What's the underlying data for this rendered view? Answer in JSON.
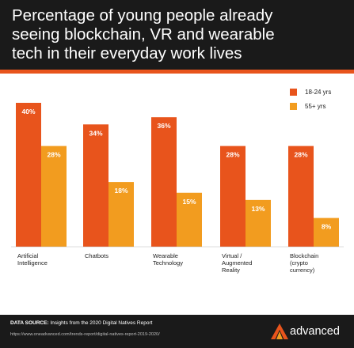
{
  "header": {
    "title": "Percentage of young people already\nseeing blockchain, VR and wearable\ntech in their everyday work lives"
  },
  "colors": {
    "accent": "#e8541c",
    "series_a": "#e8541c",
    "series_b": "#f29c1f",
    "dark": "#1a1a1a"
  },
  "chart_data": {
    "type": "bar",
    "title": "Percentage of young people already seeing blockchain, VR and wearable tech in their everyday work lives",
    "categories": [
      "Artificial\nIntelligence",
      "Chatbots",
      "Wearable\nTechnology",
      "Virtual /\nAugmented\nReality",
      "Blockchain\n(crypto\ncurrency)"
    ],
    "series": [
      {
        "name": "18-24 yrs",
        "color": "#e8541c",
        "values": [
          40,
          34,
          36,
          28,
          28
        ]
      },
      {
        "name": "55+ yrs",
        "color": "#f29c1f",
        "values": [
          28,
          18,
          15,
          13,
          8
        ]
      }
    ],
    "value_suffix": "%",
    "ylim": [
      0,
      40
    ],
    "legend_position": "top-right",
    "grid": false
  },
  "footer": {
    "source_label": "DATA SOURCE:",
    "source_text": " Insights from the 2020 Digital Natives Report",
    "url": "https://www.oneadvanced.com/trends-report/digital-natives-report-2019-2020/",
    "brand": "advanced",
    "logo_icon": "advanced-logo-icon"
  }
}
